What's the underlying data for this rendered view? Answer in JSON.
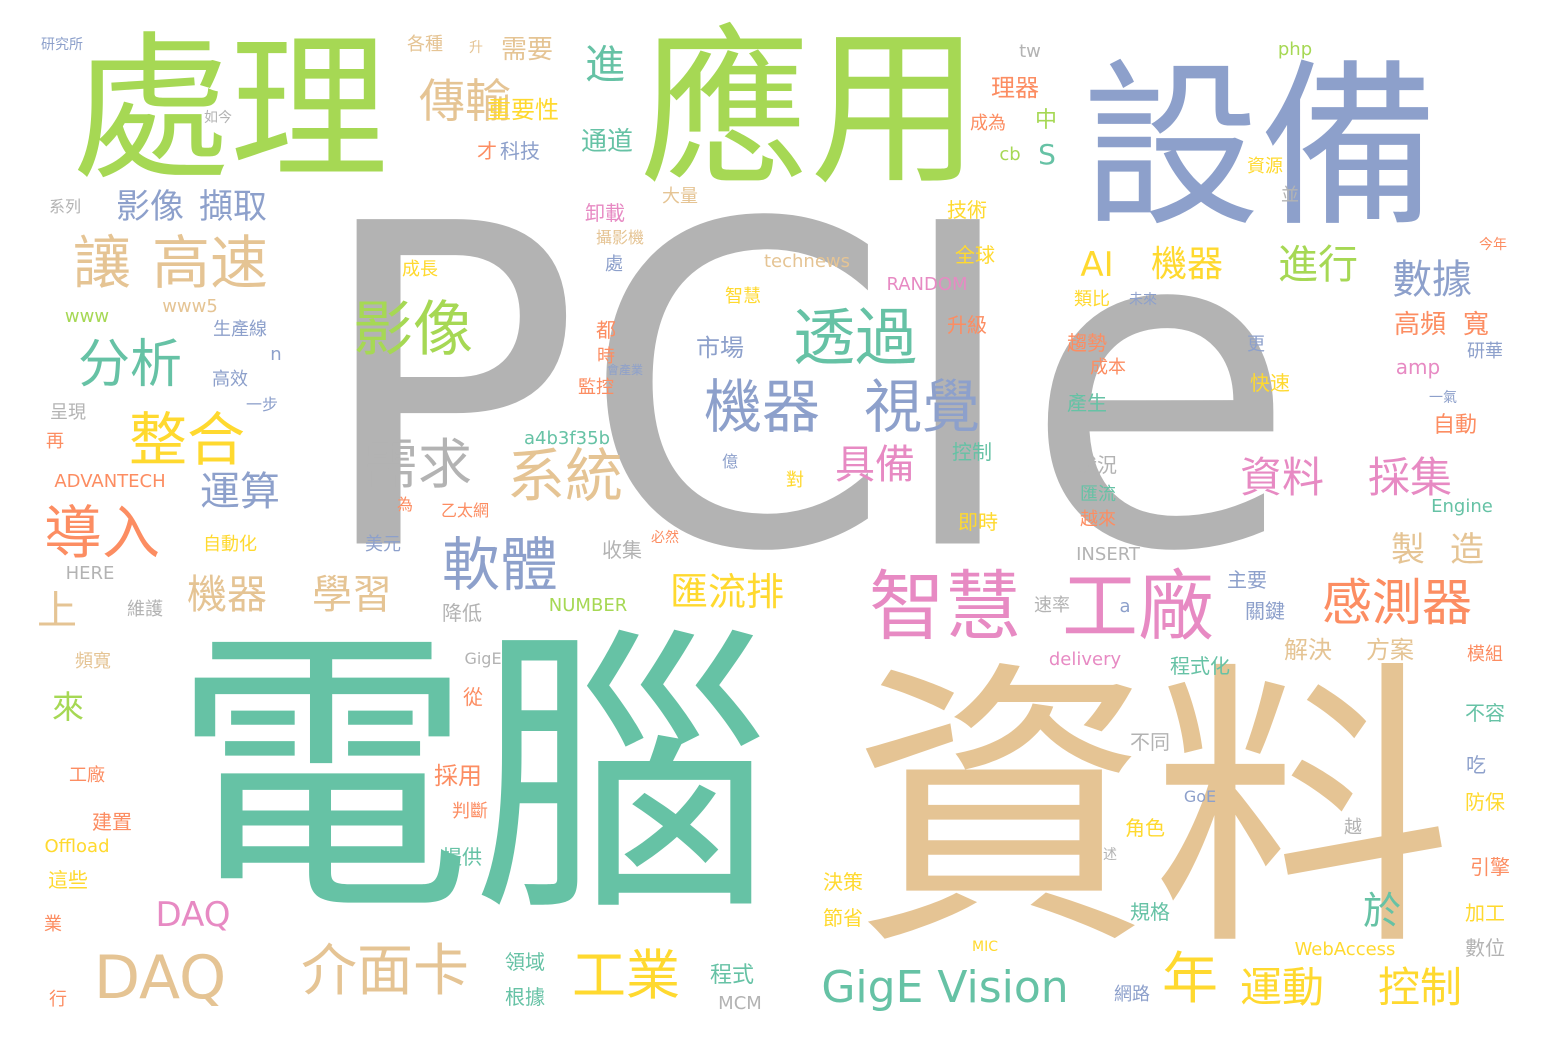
{
  "palette": {
    "gray": "#b3b3b3",
    "teal": "#66c2a5",
    "tan": "#e5c494",
    "blue": "#8da0cb",
    "green": "#a6d854",
    "pink": "#e78ac3",
    "orange": "#fc8d62",
    "yellow": "#ffd92f"
  },
  "words": [
    {
      "text": "PCIe",
      "color": "gray"
    },
    {
      "text": "電腦",
      "color": "teal"
    },
    {
      "text": "資料",
      "color": "tan"
    },
    {
      "text": "設備",
      "color": "blue"
    },
    {
      "text": "應用",
      "color": "green"
    },
    {
      "text": "處理",
      "color": "green"
    },
    {
      "text": "智慧",
      "color": "pink"
    },
    {
      "text": "工廠",
      "color": "pink"
    },
    {
      "text": "機器",
      "color": "blue"
    },
    {
      "text": "視覺",
      "color": "blue"
    },
    {
      "text": "透過",
      "color": "teal"
    },
    {
      "text": "影像",
      "color": "green"
    },
    {
      "text": "系統",
      "color": "tan"
    },
    {
      "text": "需求",
      "color": "gray"
    },
    {
      "text": "軟體",
      "color": "blue"
    },
    {
      "text": "整合",
      "color": "yellow"
    },
    {
      "text": "分析",
      "color": "teal"
    },
    {
      "text": "導入",
      "color": "orange"
    },
    {
      "text": "讓",
      "color": "tan"
    },
    {
      "text": "高速",
      "color": "tan"
    },
    {
      "text": "傳輸",
      "color": "tan"
    },
    {
      "text": "DAQ",
      "color": "tan"
    },
    {
      "text": "介面卡",
      "color": "tan"
    },
    {
      "text": "GigE Vision",
      "color": "teal"
    },
    {
      "text": "工業",
      "color": "yellow"
    },
    {
      "text": "感測器",
      "color": "orange"
    },
    {
      "text": "運動",
      "color": "yellow"
    },
    {
      "text": "控制",
      "color": "yellow"
    },
    {
      "text": "資料",
      "color": "pink"
    },
    {
      "text": "採集",
      "color": "pink"
    },
    {
      "text": "具備",
      "color": "pink"
    },
    {
      "text": "機器",
      "color": "tan"
    },
    {
      "text": "學習",
      "color": "tan"
    },
    {
      "text": "運算",
      "color": "blue"
    },
    {
      "text": "匯流排",
      "color": "yellow"
    },
    {
      "text": "年",
      "color": "yellow"
    },
    {
      "text": "AI",
      "color": "yellow"
    },
    {
      "text": "機器",
      "color": "yellow"
    },
    {
      "text": "進行",
      "color": "green"
    },
    {
      "text": "數據",
      "color": "blue"
    },
    {
      "text": "製",
      "color": "tan"
    },
    {
      "text": "造",
      "color": "tan"
    },
    {
      "text": "影像",
      "color": "blue"
    },
    {
      "text": "擷取",
      "color": "blue"
    },
    {
      "text": "進",
      "color": "teal"
    },
    {
      "text": "需要",
      "color": "tan"
    },
    {
      "text": "重要性",
      "color": "yellow"
    },
    {
      "text": "通道",
      "color": "teal"
    },
    {
      "text": "才",
      "color": "orange"
    },
    {
      "text": "科技",
      "color": "blue"
    },
    {
      "text": "高頻",
      "color": "orange"
    },
    {
      "text": "寬",
      "color": "orange"
    },
    {
      "text": "上",
      "color": "tan"
    },
    {
      "text": "來",
      "color": "green"
    },
    {
      "text": "於",
      "color": "teal"
    },
    {
      "text": "DAQ",
      "color": "pink"
    },
    {
      "text": "市場",
      "color": "blue"
    },
    {
      "text": "S",
      "color": "teal"
    },
    {
      "text": "中",
      "color": "green"
    },
    {
      "text": "理器",
      "color": "orange"
    },
    {
      "text": "成為",
      "color": "orange"
    },
    {
      "text": "tw",
      "color": "gray"
    },
    {
      "text": "php",
      "color": "green"
    },
    {
      "text": "cb",
      "color": "green"
    },
    {
      "text": "technews",
      "color": "tan"
    },
    {
      "text": "RANDOM",
      "color": "pink"
    },
    {
      "text": "www5",
      "color": "tan"
    },
    {
      "text": "www",
      "color": "green"
    },
    {
      "text": "amp",
      "color": "pink"
    },
    {
      "text": "a4b3f35b",
      "color": "teal"
    },
    {
      "text": "ADVANTECH",
      "color": "orange"
    },
    {
      "text": "Engine",
      "color": "teal"
    },
    {
      "text": "INSERT",
      "color": "gray"
    },
    {
      "text": "HERE",
      "color": "gray"
    },
    {
      "text": "NUMBER",
      "color": "green"
    },
    {
      "text": "delivery",
      "color": "pink"
    },
    {
      "text": "GigE",
      "color": "gray"
    },
    {
      "text": "GoE",
      "color": "blue"
    },
    {
      "text": "Offload",
      "color": "yellow"
    },
    {
      "text": "WebAccess",
      "color": "yellow"
    },
    {
      "text": "MCM",
      "color": "gray"
    },
    {
      "text": "MIC",
      "color": "yellow"
    },
    {
      "text": "a",
      "color": "blue"
    },
    {
      "text": "n",
      "color": "blue"
    },
    {
      "text": "技術",
      "color": "yellow"
    },
    {
      "text": "全球",
      "color": "yellow"
    },
    {
      "text": "智慧",
      "color": "yellow"
    },
    {
      "text": "升級",
      "color": "orange"
    },
    {
      "text": "控制",
      "color": "teal"
    },
    {
      "text": "即時",
      "color": "yellow"
    },
    {
      "text": "解決",
      "color": "tan"
    },
    {
      "text": "方案",
      "color": "tan"
    },
    {
      "text": "程式化",
      "color": "teal"
    },
    {
      "text": "主要",
      "color": "blue"
    },
    {
      "text": "關鍵",
      "color": "blue"
    },
    {
      "text": "規格",
      "color": "teal"
    },
    {
      "text": "角色",
      "color": "yellow"
    },
    {
      "text": "不同",
      "color": "gray"
    },
    {
      "text": "採用",
      "color": "orange"
    },
    {
      "text": "判斷",
      "color": "orange"
    },
    {
      "text": "提供",
      "color": "teal"
    },
    {
      "text": "降低",
      "color": "gray"
    },
    {
      "text": "收集",
      "color": "gray"
    },
    {
      "text": "程式",
      "color": "teal"
    },
    {
      "text": "領域",
      "color": "teal"
    },
    {
      "text": "根據",
      "color": "teal"
    },
    {
      "text": "網路",
      "color": "blue"
    },
    {
      "text": "決策",
      "color": "yellow"
    },
    {
      "text": "節省",
      "color": "yellow"
    },
    {
      "text": "數位",
      "color": "gray"
    },
    {
      "text": "加工",
      "color": "yellow"
    },
    {
      "text": "引擎",
      "color": "orange"
    },
    {
      "text": "防保",
      "color": "yellow"
    },
    {
      "text": "吃",
      "color": "blue"
    },
    {
      "text": "不容",
      "color": "teal"
    },
    {
      "text": "模組",
      "color": "orange"
    },
    {
      "text": "自動",
      "color": "orange"
    },
    {
      "text": "狀況",
      "color": "gray"
    },
    {
      "text": "匯流",
      "color": "teal"
    },
    {
      "text": "越來",
      "color": "orange"
    },
    {
      "text": "產生",
      "color": "teal"
    },
    {
      "text": "趨勢",
      "color": "orange"
    },
    {
      "text": "成本",
      "color": "orange"
    },
    {
      "text": "類比",
      "color": "yellow"
    },
    {
      "text": "未來",
      "color": "blue"
    },
    {
      "text": "更",
      "color": "blue"
    },
    {
      "text": "快速",
      "color": "yellow"
    },
    {
      "text": "研華",
      "color": "blue"
    },
    {
      "text": "今年",
      "color": "orange"
    },
    {
      "text": "一氣",
      "color": "blue"
    },
    {
      "text": "資源",
      "color": "yellow"
    },
    {
      "text": "並",
      "color": "gray"
    },
    {
      "text": "成長",
      "color": "yellow"
    },
    {
      "text": "生產線",
      "color": "blue"
    },
    {
      "text": "高效",
      "color": "blue"
    },
    {
      "text": "一步",
      "color": "blue"
    },
    {
      "text": "呈現",
      "color": "gray"
    },
    {
      "text": "再",
      "color": "orange"
    },
    {
      "text": "自動化",
      "color": "yellow"
    },
    {
      "text": "維護",
      "color": "gray"
    },
    {
      "text": "頻寬",
      "color": "tan"
    },
    {
      "text": "從",
      "color": "orange"
    },
    {
      "text": "工廠",
      "color": "orange"
    },
    {
      "text": "建置",
      "color": "orange"
    },
    {
      "text": "這些",
      "color": "yellow"
    },
    {
      "text": "業",
      "color": "orange"
    },
    {
      "text": "行",
      "color": "orange"
    },
    {
      "text": "系列",
      "color": "gray"
    },
    {
      "text": "研究所",
      "color": "blue"
    },
    {
      "text": "各種",
      "color": "tan"
    },
    {
      "text": "升",
      "color": "tan"
    },
    {
      "text": "卸載",
      "color": "pink"
    },
    {
      "text": "攝影機",
      "color": "tan"
    },
    {
      "text": "大量",
      "color": "tan"
    },
    {
      "text": "處",
      "color": "blue"
    },
    {
      "text": "都",
      "color": "orange"
    },
    {
      "text": "時",
      "color": "orange"
    },
    {
      "text": "監控",
      "color": "orange"
    },
    {
      "text": "億",
      "color": "blue"
    },
    {
      "text": "對",
      "color": "yellow"
    },
    {
      "text": "為",
      "color": "orange"
    },
    {
      "text": "美元",
      "color": "blue"
    },
    {
      "text": "乙太網",
      "color": "orange"
    },
    {
      "text": "必然",
      "color": "orange"
    },
    {
      "text": "速率",
      "color": "gray"
    },
    {
      "text": "會產業",
      "color": "blue"
    },
    {
      "text": "如今",
      "color": "gray"
    },
    {
      "text": "越",
      "color": "gray"
    },
    {
      "text": "述",
      "color": "gray"
    }
  ]
}
